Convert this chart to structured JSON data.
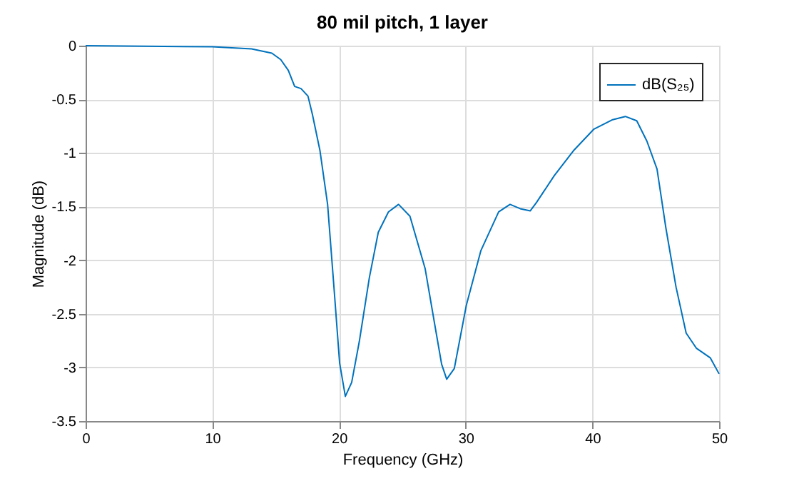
{
  "chart_data": {
    "type": "line",
    "title": "80 mil pitch, 1 layer",
    "xlabel": "Frequency (GHz)",
    "ylabel": "Magnitude (dB)",
    "x": [
      0,
      10,
      13.1,
      14.7,
      15.4,
      16.0,
      16.5,
      17.0,
      17.55,
      17.9,
      18.5,
      19.1,
      19.6,
      20.05,
      20.5,
      21.0,
      21.6,
      22.4,
      23.1,
      23.9,
      24.7,
      25.6,
      26.8,
      27.6,
      28.1,
      28.5,
      29.1,
      30.05,
      31.2,
      32.6,
      33.5,
      34.3,
      35.1,
      35.6,
      37.0,
      38.5,
      40.1,
      41.6,
      42.6,
      43.5,
      44.3,
      45.1,
      45.8,
      46.6,
      47.4,
      48.2,
      49.3,
      50
    ],
    "series": [
      {
        "name": "dB(S₂₅)",
        "color": "#0072bd",
        "values": [
          0,
          -0.01,
          -0.03,
          -0.07,
          -0.13,
          -0.23,
          -0.38,
          -0.4,
          -0.47,
          -0.64,
          -0.98,
          -1.48,
          -2.25,
          -2.96,
          -3.27,
          -3.14,
          -2.76,
          -2.16,
          -1.74,
          -1.55,
          -1.48,
          -1.59,
          -2.08,
          -2.63,
          -2.97,
          -3.11,
          -3.01,
          -2.42,
          -1.91,
          -1.55,
          -1.48,
          -1.52,
          -1.54,
          -1.46,
          -1.21,
          -0.98,
          -0.78,
          -0.69,
          -0.66,
          -0.7,
          -0.89,
          -1.15,
          -1.7,
          -2.25,
          -2.68,
          -2.82,
          -2.91,
          -3.06
        ]
      }
    ],
    "xlim": [
      0,
      50
    ],
    "xticks": [
      0,
      10,
      20,
      30,
      40,
      50
    ],
    "ylim": [
      -3.5,
      0
    ],
    "yticks": [
      -3.5,
      -3,
      -2.5,
      -2,
      -1.5,
      -1,
      -0.5,
      0
    ],
    "grid": true,
    "legend": "top right",
    "marker": "none",
    "line_style": "solid"
  }
}
